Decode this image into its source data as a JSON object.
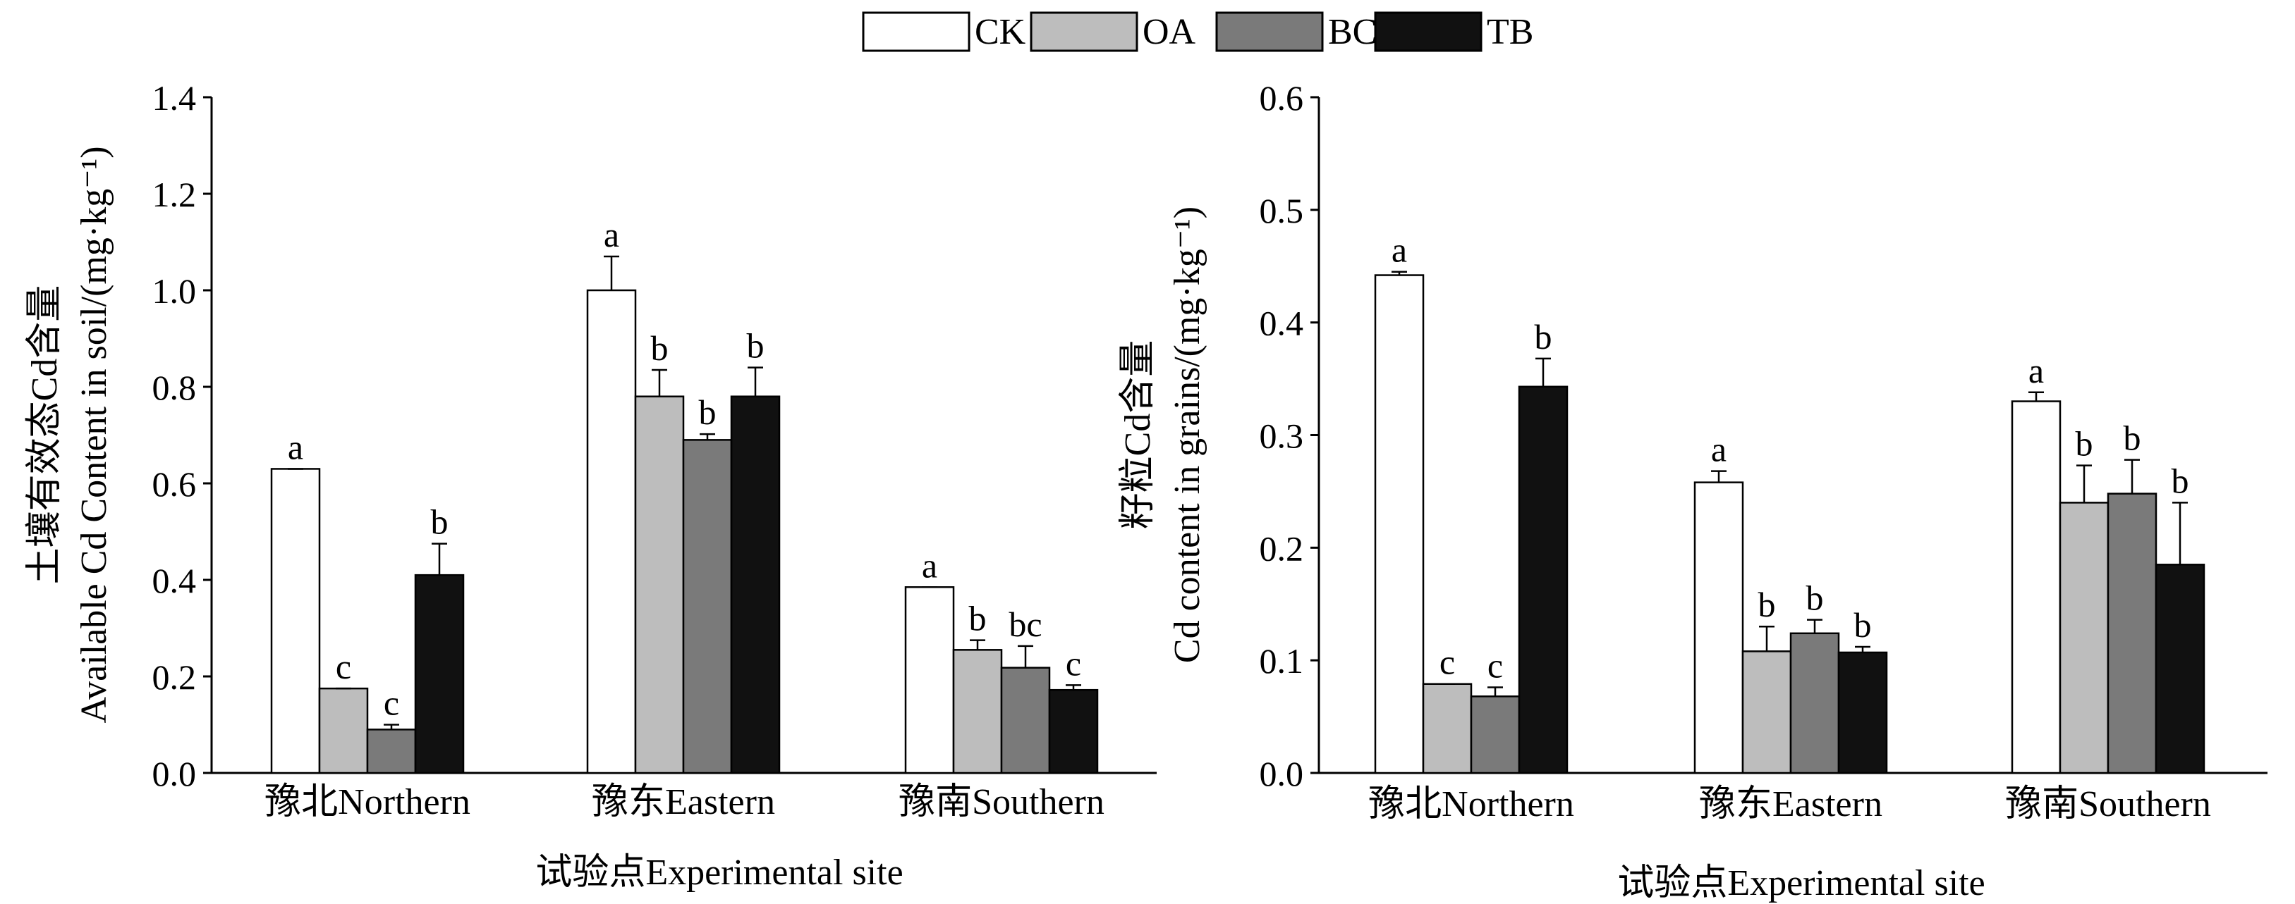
{
  "legend": [
    {
      "key": "CK",
      "label": "CK",
      "color": "#ffffff"
    },
    {
      "key": "OA",
      "label": "OA",
      "color": "#bdbdbd"
    },
    {
      "key": "BC",
      "label": "BC",
      "color": "#7a7a7a"
    },
    {
      "key": "TB",
      "label": "TB",
      "color": "#111111"
    }
  ],
  "chart_data": [
    {
      "type": "bar",
      "title": "",
      "xlabel": "试验点Experimental site",
      "ylabel_zh": "土壤有效态Cd含量",
      "ylabel_en": "Available Cd Content in soil/(mg·kg⁻¹)",
      "ylim": [
        0,
        1.4
      ],
      "yticks": [
        "0.0",
        "0.2",
        "0.4",
        "0.6",
        "0.8",
        "1.0",
        "1.2",
        "1.4"
      ],
      "categories": [
        "豫北Northern",
        "豫东Eastern",
        "豫南Southern"
      ],
      "series": [
        {
          "name": "CK",
          "values": [
            0.63,
            1.0,
            0.385
          ],
          "errors": [
            0.0,
            0.07,
            0.0
          ],
          "letters": [
            "a",
            "a",
            "a"
          ]
        },
        {
          "name": "OA",
          "values": [
            0.175,
            0.78,
            0.255
          ],
          "errors": [
            0.0,
            0.055,
            0.02
          ],
          "letters": [
            "c",
            "b",
            "b"
          ]
        },
        {
          "name": "BC",
          "values": [
            0.09,
            0.69,
            0.218
          ],
          "errors": [
            0.01,
            0.012,
            0.045
          ],
          "letters": [
            "c",
            "b",
            "bc"
          ]
        },
        {
          "name": "TB",
          "values": [
            0.41,
            0.78,
            0.172
          ],
          "errors": [
            0.065,
            0.06,
            0.01
          ],
          "letters": [
            "b",
            "b",
            "c"
          ]
        }
      ]
    },
    {
      "type": "bar",
      "title": "",
      "xlabel": "试验点Experimental site",
      "ylabel_zh": "籽粒Cd含量",
      "ylabel_en": "Cd content in grains/(mg·kg⁻¹)",
      "ylim": [
        0,
        0.6
      ],
      "yticks": [
        "0.0",
        "0.1",
        "0.2",
        "0.3",
        "0.4",
        "0.5",
        "0.6"
      ],
      "categories": [
        "豫北Northern",
        "豫东Eastern",
        "豫南Southern"
      ],
      "series": [
        {
          "name": "CK",
          "values": [
            0.442,
            0.258,
            0.33
          ],
          "errors": [
            0.003,
            0.01,
            0.008
          ],
          "letters": [
            "a",
            "a",
            "a"
          ]
        },
        {
          "name": "OA",
          "values": [
            0.079,
            0.108,
            0.24
          ],
          "errors": [
            0.0,
            0.022,
            0.033
          ],
          "letters": [
            "c",
            "b",
            "b"
          ]
        },
        {
          "name": "BC",
          "values": [
            0.068,
            0.124,
            0.248
          ],
          "errors": [
            0.008,
            0.012,
            0.03
          ],
          "letters": [
            "c",
            "b",
            "b"
          ]
        },
        {
          "name": "TB",
          "values": [
            0.343,
            0.107,
            0.185
          ],
          "errors": [
            0.025,
            0.005,
            0.055
          ],
          "letters": [
            "b",
            "b",
            "b"
          ]
        }
      ]
    }
  ]
}
